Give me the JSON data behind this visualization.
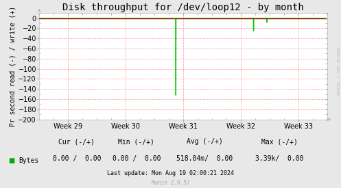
{
  "title": "Disk throughput for /dev/loop12 - by month",
  "ylabel": "Pr second read (-) / write (+)",
  "background_color": "#e8e8e8",
  "plot_background_color": "#ffffff",
  "grid_color": "#ffaaaa",
  "xlim_weeks": [
    28.5,
    33.5
  ],
  "ylim": [
    -200,
    10
  ],
  "yticks": [
    0,
    -20,
    -40,
    -60,
    -80,
    -100,
    -120,
    -140,
    -160,
    -180,
    -200
  ],
  "x_week_labels": [
    29,
    30,
    31,
    32,
    33
  ],
  "line_color": "#00cc00",
  "line_width": 1.0,
  "spike1_x": 30.87,
  "spike1_y": -152,
  "spike2_x": 32.22,
  "spike2_y": -25,
  "spike3_x": 32.45,
  "spike3_y": -8,
  "baseline_color": "#cc0000",
  "arrow_color": "#aaaacc",
  "legend_label": "Bytes",
  "legend_color": "#00aa00",
  "cur_label": "Cur (-/+)",
  "min_label": "Min (-/+)",
  "avg_label": "Avg (-/+)",
  "max_label": "Max (-/+)",
  "cur_val": "0.00 /  0.00",
  "min_val": "0.00 /  0.00",
  "avg_val": "518.04m/  0.00",
  "max_val": "3.39k/  0.00",
  "last_update": "Last update: Mon Aug 19 02:00:21 2024",
  "munin_text": "Munin 2.0.57",
  "rrdtool_text": "RRDTOOL / TOBI OETIKER",
  "title_fontsize": 10,
  "axis_fontsize": 7,
  "tick_fontsize": 7,
  "legend_fontsize": 7,
  "footer_fontsize": 6
}
